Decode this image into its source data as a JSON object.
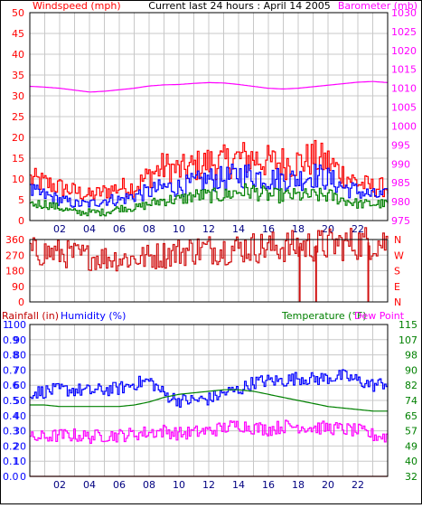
{
  "chart_data": [
    {
      "type": "line",
      "title": "Current last 24 hours : April 14 2005",
      "left_axis_label": "Windspeed (mph)",
      "right_axis_label": "Barometer (mb)",
      "x_ticks": [
        "02",
        "04",
        "06",
        "08",
        "10",
        "12",
        "14",
        "16",
        "18",
        "20",
        "22"
      ],
      "x_tick_hours": [
        2,
        4,
        6,
        8,
        10,
        12,
        14,
        16,
        18,
        20,
        22
      ],
      "x_range_hours": [
        0,
        24
      ],
      "y_ticks_left": [
        "50",
        "45",
        "40",
        "35",
        "30",
        "25",
        "20",
        "15",
        "10",
        "5",
        "0"
      ],
      "y_ticks_right": [
        "1030",
        "1025",
        "1020",
        "1015",
        "1010",
        "1005",
        "1000",
        "995",
        "990",
        "985",
        "980",
        "975"
      ],
      "ylim_left": [
        0,
        50
      ],
      "ylim_right": [
        975,
        1030
      ],
      "grid": true,
      "series": [
        {
          "axis": "right",
          "color": "#ff00ff",
          "style": "line",
          "x": [
            0,
            1,
            2,
            3,
            4,
            5,
            6,
            7,
            8,
            9,
            10,
            11,
            12,
            13,
            14,
            15,
            16,
            17,
            18,
            19,
            20,
            21,
            22,
            23,
            24
          ],
          "values": [
            1010.5,
            1010.3,
            1010.0,
            1009.5,
            1009.0,
            1009.2,
            1009.6,
            1010.0,
            1010.6,
            1010.9,
            1011.0,
            1011.3,
            1011.5,
            1011.4,
            1011.0,
            1010.5,
            1010.0,
            1009.8,
            1010.0,
            1010.4,
            1010.8,
            1011.2,
            1011.6,
            1011.8,
            1011.5
          ]
        },
        {
          "axis": "left",
          "color": "#ff0000",
          "style": "step-noisy",
          "x": [
            0,
            1,
            2,
            3,
            4,
            5,
            6,
            7,
            8,
            9,
            10,
            11,
            12,
            13,
            14,
            15,
            16,
            17,
            18,
            19,
            20,
            21,
            22,
            23,
            24
          ],
          "values": [
            10,
            9,
            8,
            7,
            6,
            7,
            8,
            8,
            11,
            13,
            12,
            13,
            14,
            14,
            15,
            15,
            14,
            14,
            14,
            15,
            14,
            11,
            9,
            8,
            8
          ]
        },
        {
          "axis": "left",
          "color": "#0000ff",
          "style": "step-noisy",
          "x": [
            0,
            1,
            2,
            3,
            4,
            5,
            6,
            7,
            8,
            9,
            10,
            11,
            12,
            13,
            14,
            15,
            16,
            17,
            18,
            19,
            20,
            21,
            22,
            23,
            24
          ],
          "values": [
            7,
            6,
            5,
            4,
            4,
            5,
            5,
            6,
            7,
            8,
            8,
            9,
            10,
            10,
            11,
            11,
            10,
            10,
            10,
            11,
            10,
            8,
            7,
            6,
            6
          ]
        },
        {
          "axis": "left",
          "color": "#008000",
          "style": "step-noisy",
          "x": [
            0,
            1,
            2,
            3,
            4,
            5,
            6,
            7,
            8,
            9,
            10,
            11,
            12,
            13,
            14,
            15,
            16,
            17,
            18,
            19,
            20,
            21,
            22,
            23,
            24
          ],
          "values": [
            4,
            4,
            3,
            2,
            2,
            2,
            3,
            3,
            4,
            5,
            5,
            6,
            6,
            6,
            7,
            7,
            6,
            6,
            6,
            6,
            6,
            5,
            4,
            4,
            4
          ]
        }
      ]
    },
    {
      "type": "line",
      "y_ticks_left": [
        "360",
        "270",
        "180",
        "90",
        "0"
      ],
      "y_ticks_right": [
        "N",
        "W",
        "S",
        "E",
        "N"
      ],
      "ylim_left": [
        0,
        360
      ],
      "x_range_hours": [
        0,
        24
      ],
      "grid": true,
      "series": [
        {
          "axis": "left",
          "color": "#d01010",
          "style": "step-noisy",
          "x": [
            0,
            1,
            2,
            3,
            4,
            5,
            6,
            7,
            8,
            9,
            10,
            11,
            12,
            13,
            14,
            15,
            16,
            17,
            18,
            19,
            20,
            21,
            22,
            23,
            24
          ],
          "values": [
            290,
            285,
            280,
            270,
            260,
            255,
            250,
            250,
            260,
            275,
            290,
            300,
            305,
            305,
            310,
            315,
            315,
            320,
            320,
            325,
            330,
            335,
            340,
            345,
            345
          ]
        },
        {
          "axis": "left",
          "color": "#d01010",
          "style": "spike",
          "x": [
            18.1,
            19.2,
            22.7
          ],
          "values": [
            0,
            0,
            0
          ]
        }
      ]
    },
    {
      "type": "line",
      "left_axis_label": "Rainfall (in)",
      "left_axis_label_2": "Humidity (%)",
      "right_axis_label": "Temperature (°F)",
      "right_axis_label_2": "Dew Point",
      "x_ticks": [
        "02",
        "04",
        "06",
        "08",
        "10",
        "12",
        "14",
        "16",
        "18",
        "20",
        "22"
      ],
      "x_tick_hours": [
        2,
        4,
        6,
        8,
        10,
        12,
        14,
        16,
        18,
        20,
        22
      ],
      "x_range_hours": [
        0,
        24
      ],
      "y_ticks_humidity": [
        "100",
        "90",
        "80",
        "70",
        "60",
        "50",
        "40",
        "30",
        "20",
        "10",
        "0"
      ],
      "y_ticks_rain": [
        "1",
        "0.9",
        "0.8",
        "0.7",
        "0.6",
        "0.5",
        "0.4",
        "0.3",
        "0.2",
        "0.1",
        "0.0"
      ],
      "y_ticks_temp": [
        "115",
        "107",
        "98",
        "90",
        "82",
        "74",
        "65",
        "57",
        "49",
        "40",
        "32"
      ],
      "ylim_left": [
        0,
        100
      ],
      "ylim_right": [
        32,
        115
      ],
      "grid": true,
      "series": [
        {
          "axis": "left",
          "color": "#0000ff",
          "style": "step-noisy-small",
          "x": [
            0,
            1,
            2,
            3,
            4,
            5,
            6,
            7,
            8,
            9,
            10,
            11,
            12,
            13,
            14,
            15,
            16,
            17,
            18,
            19,
            20,
            21,
            22,
            23,
            24
          ],
          "values": [
            55,
            56,
            57,
            57,
            56,
            57,
            58,
            61,
            63,
            54,
            50,
            50,
            51,
            55,
            57,
            62,
            63,
            63,
            65,
            64,
            65,
            66,
            63,
            60,
            62
          ]
        },
        {
          "axis": "left",
          "color": "#008000",
          "style": "line",
          "x": [
            0,
            1,
            2,
            3,
            4,
            5,
            6,
            7,
            8,
            9,
            10,
            11,
            12,
            13,
            14,
            15,
            16,
            17,
            18,
            19,
            20,
            21,
            22,
            23,
            24
          ],
          "values": [
            47,
            47,
            46,
            46,
            46,
            46,
            46,
            47,
            49,
            52,
            54,
            55,
            56,
            57,
            57,
            56,
            54,
            52,
            50,
            48,
            46,
            45,
            44,
            43,
            43
          ]
        },
        {
          "axis": "left",
          "color": "#ff00ff",
          "style": "step-noisy-small",
          "x": [
            0,
            1,
            2,
            3,
            4,
            5,
            6,
            7,
            8,
            9,
            10,
            11,
            12,
            13,
            14,
            15,
            16,
            17,
            18,
            19,
            20,
            21,
            22,
            23,
            24
          ],
          "values": [
            25,
            26,
            27,
            27,
            26,
            27,
            27,
            28,
            29,
            30,
            28,
            29,
            30,
            32,
            34,
            32,
            31,
            33,
            33,
            32,
            32,
            31,
            30,
            27,
            26
          ]
        },
        {
          "axis": "left",
          "color": "#c00000",
          "style": "line",
          "x": [
            0,
            24
          ],
          "values": [
            0,
            0
          ]
        }
      ]
    }
  ]
}
